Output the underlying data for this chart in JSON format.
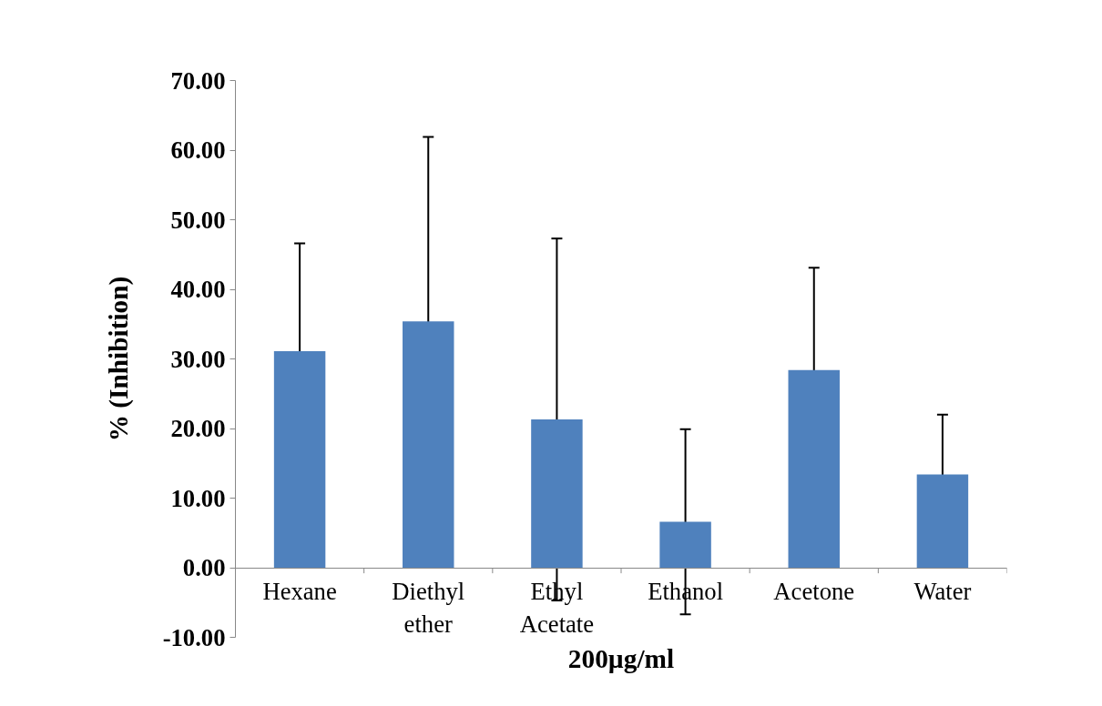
{
  "chart_data": {
    "type": "bar",
    "xlabel": "200µg/ml",
    "ylabel": "% (Inhibition)",
    "categories": [
      "Hexane",
      "Diethyl\nether",
      "Ethyl\nAcetate",
      "Ethanol",
      "Acetone",
      "Water"
    ],
    "series": [
      {
        "color": "#4f81bd",
        "values": [
          31.1,
          35.4,
          21.3,
          6.6,
          28.4,
          13.4
        ],
        "errors": [
          15.5,
          26.5,
          26.0,
          13.3,
          14.7,
          8.6
        ]
      }
    ],
    "ylim": [
      -10,
      70
    ],
    "yticks": [
      {
        "value": -10,
        "label": "-10.00"
      },
      {
        "value": 0,
        "label": "0.00"
      },
      {
        "value": 10,
        "label": "10.00"
      },
      {
        "value": 20,
        "label": "20.00"
      },
      {
        "value": 30,
        "label": "30.00"
      },
      {
        "value": 40,
        "label": "40.00"
      },
      {
        "value": 50,
        "label": "50.00"
      },
      {
        "value": 60,
        "label": "60.00"
      },
      {
        "value": 70,
        "label": "70.00"
      }
    ],
    "grid": false
  }
}
